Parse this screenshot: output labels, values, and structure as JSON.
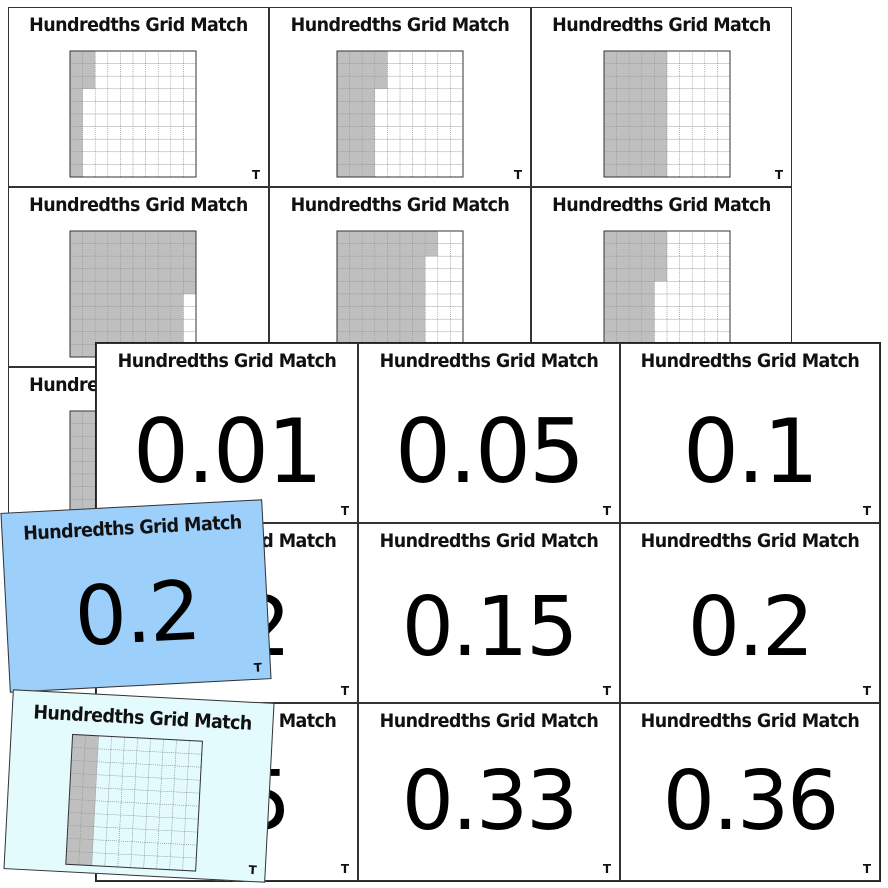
{
  "card_title": "Hundredths Grid Match",
  "card_mark": "T",
  "colors": {
    "shade": "#bfbfbf",
    "grid_line": "#777777",
    "blue_card": "#9ccffa",
    "cyan_card": "#e4fbfe"
  },
  "back_sheet": {
    "grid_cards": [
      {
        "shaded_hundredths": 13
      },
      {
        "shaded_hundredths": 33
      },
      {
        "shaded_hundredths": 50
      },
      {
        "shaded_hundredths": 95
      },
      {
        "shaded_hundredths": 72
      },
      {
        "shaded_hundredths": 44
      },
      {
        "shaded_hundredths": 20
      }
    ]
  },
  "front_sheet": {
    "number_cards": [
      "0.01",
      "0.05",
      "0.1",
      "0.2",
      "0.15",
      "0.2",
      "0.5",
      "0.33",
      "0.36"
    ]
  },
  "blue_card": {
    "number": "0.2"
  },
  "cyan_card": {
    "shaded_hundredths": 20
  }
}
